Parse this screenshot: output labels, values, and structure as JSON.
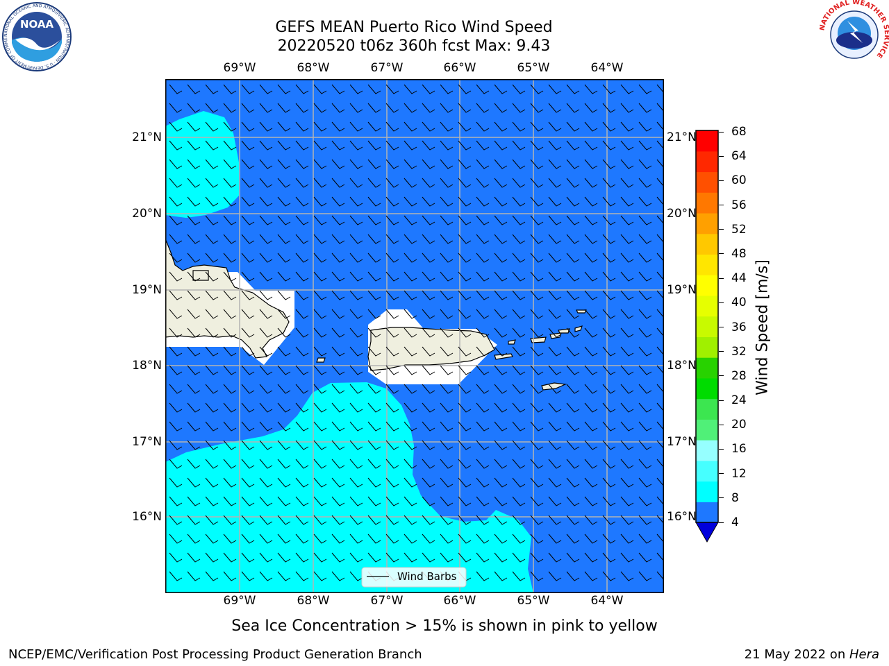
{
  "title": {
    "line1": "GEFS MEAN Puerto Rico Wind Speed",
    "line2": "20220520 t06z 360h fcst   Max: 9.43"
  },
  "map": {
    "lon_labels": [
      "69°W",
      "68°W",
      "67°W",
      "66°W",
      "65°W",
      "64°W"
    ],
    "lat_labels": [
      "21°N",
      "20°N",
      "19°N",
      "18°N",
      "17°N",
      "16°N"
    ],
    "legend": {
      "label": "Wind Barbs"
    },
    "colors": {
      "ocean_4_8": "#1e78ff",
      "ocean_8_12": "#00ffff",
      "land": "#efefdf",
      "masked": "#ffffff",
      "grid": "#b4b4b4"
    }
  },
  "colorbar": {
    "label": "Wind Speed [m/s]",
    "ticks": [
      "68",
      "64",
      "60",
      "56",
      "52",
      "48",
      "44",
      "40",
      "36",
      "32",
      "28",
      "24",
      "20",
      "16",
      "12",
      "8",
      "4"
    ],
    "extend_color": "#0000dc",
    "colors": [
      "#1e78ff",
      "#00ffff",
      "#46ffff",
      "#96ffff",
      "#50f078",
      "#3ce650",
      "#00dc00",
      "#28d200",
      "#a0f000",
      "#c8fa00",
      "#e6ff00",
      "#ffff00",
      "#ffe600",
      "#ffc800",
      "#ffa000",
      "#ff7800",
      "#ff5000",
      "#ff2800",
      "#ff0000"
    ]
  },
  "notes": {
    "sea_ice": "Sea Ice Concentration > 15% is shown in pink to yellow"
  },
  "footer": {
    "left": "NCEP/EMC/Verification Post Processing Product Generation Branch",
    "right_prefix": "21 May 2022 on ",
    "right_machine": "Hera"
  },
  "logos": {
    "noaa": "NOAA",
    "noaa_ring": "NATIONAL OCEANIC AND ATMOSPHERIC ADMINISTRATION · U.S. DEPARTMENT OF COMMERCE",
    "nws_ring": "NATIONAL WEATHER SERVICE"
  }
}
